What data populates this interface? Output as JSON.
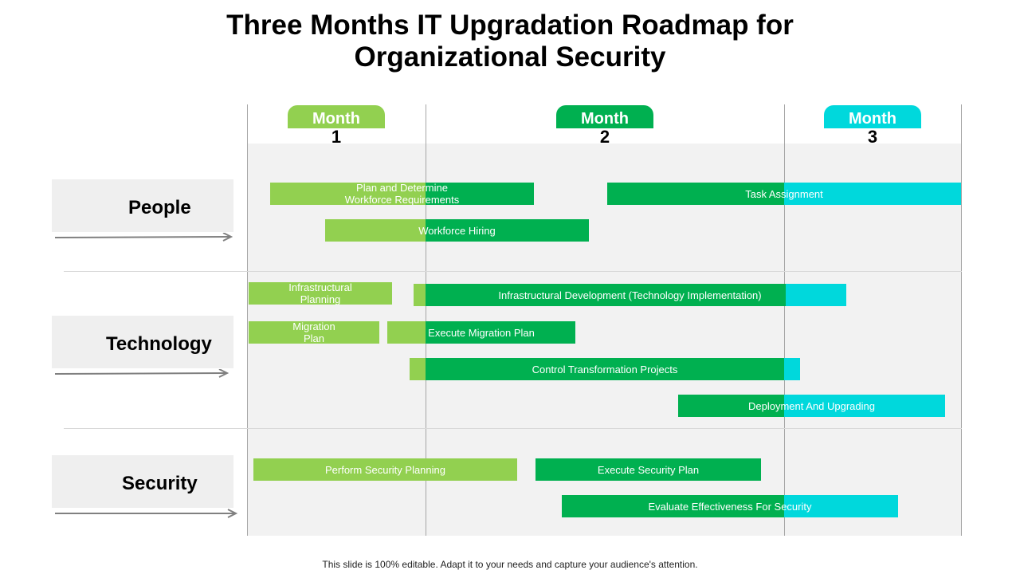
{
  "title_line1": "Three Months IT Upgradation Roadmap for",
  "title_line2": "Organizational Security",
  "months": [
    {
      "label": "Month",
      "number": "1",
      "color": "#92d050"
    },
    {
      "label": "Month",
      "number": "2",
      "color": "#00b050"
    },
    {
      "label": "Month",
      "number": "3",
      "color": "#00d8dc"
    }
  ],
  "categories": [
    {
      "label": "People"
    },
    {
      "label": "Technology"
    },
    {
      "label": "Security"
    }
  ],
  "tasks": [
    {
      "label": "Plan and Determine\nWorkforce Requirements",
      "category": "People"
    },
    {
      "label": "Task Assignment",
      "category": "People"
    },
    {
      "label": "Workforce Hiring",
      "category": "People"
    },
    {
      "label": "Infrastructural\nPlanning",
      "category": "Technology"
    },
    {
      "label": "Infrastructural  Development  (Technology  Implementation)",
      "category": "Technology"
    },
    {
      "label": "Migration\nPlan",
      "category": "Technology"
    },
    {
      "label": "Execute Migration  Plan",
      "category": "Technology"
    },
    {
      "label": "Control Transformation  Projects",
      "category": "Technology"
    },
    {
      "label": "Deployment  And Upgrading",
      "category": "Technology"
    },
    {
      "label": "Perform  Security Planning",
      "category": "Security"
    },
    {
      "label": "Execute Security Plan",
      "category": "Security"
    },
    {
      "label": "Evaluate  Effectiveness  For Security",
      "category": "Security"
    }
  ],
  "footer": "This slide is 100% editable. Adapt it to your needs and capture your audience's attention."
}
